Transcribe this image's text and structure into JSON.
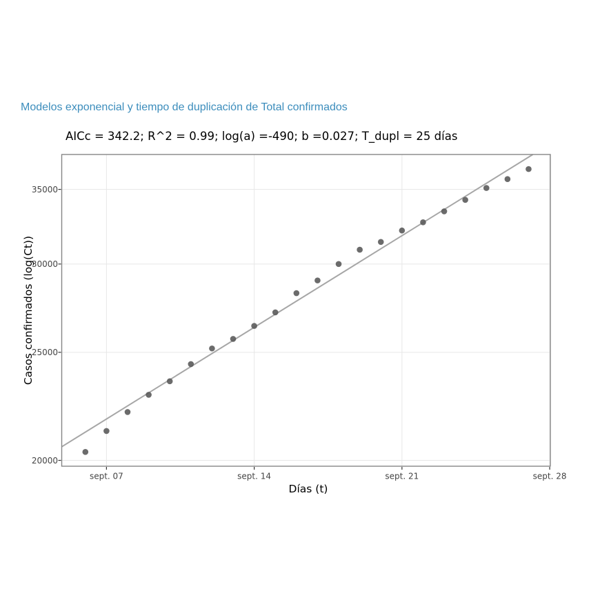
{
  "heading": {
    "text": "Modelos exponencial y tiempo de duplicación de Total confirmados",
    "color": "#3c8dbc"
  },
  "chart_data": {
    "type": "scatter",
    "title": "AICc = 342.2; R^2 = 0.99; log(a) =-490; b =0.027; T_dupl = 25 días",
    "xlabel": "Días (t)",
    "ylabel": "Casos confirmados (log(Ct))",
    "series_label": "Total confirmados",
    "y_scale": "log",
    "grid": true,
    "x_unit": "day of September",
    "x": [
      6,
      7,
      8,
      9,
      10,
      11,
      12,
      13,
      14,
      15,
      16,
      17,
      18,
      19,
      20,
      21,
      22,
      23,
      24,
      25,
      26,
      27
    ],
    "values": [
      20350,
      21250,
      22100,
      22900,
      23550,
      24400,
      25200,
      25700,
      26400,
      27150,
      28250,
      29000,
      30000,
      30900,
      31400,
      32150,
      32700,
      33450,
      34250,
      35100,
      35750,
      36500
    ],
    "x_ticks": [
      {
        "t": 7,
        "label": "sept. 07"
      },
      {
        "t": 14,
        "label": "sept. 14"
      },
      {
        "t": 21,
        "label": "sept. 21"
      },
      {
        "t": 28,
        "label": "sept. 28"
      }
    ],
    "y_ticks": [
      {
        "v": 20000,
        "label": "20000"
      },
      {
        "v": 25000,
        "label": "25000"
      },
      {
        "v": 30000,
        "label": "30000"
      },
      {
        "v": 35000,
        "label": "35000"
      }
    ],
    "x_range_days": [
      4.88,
      28.03
    ],
    "y_range": [
      19760,
      37615
    ],
    "trend_line": {
      "t": [
        4.88,
        27.2
      ],
      "v": [
        20570,
        37615
      ],
      "model": "exponential fit"
    },
    "colors": {
      "point": "#5b5b5b",
      "trend_line": "#a6a6a6",
      "gridline": "#e7e7e7",
      "panel_border": "#858585",
      "tick_mark": "#333333",
      "tick_label": "#444444",
      "heading": "#3c8dbc"
    }
  }
}
